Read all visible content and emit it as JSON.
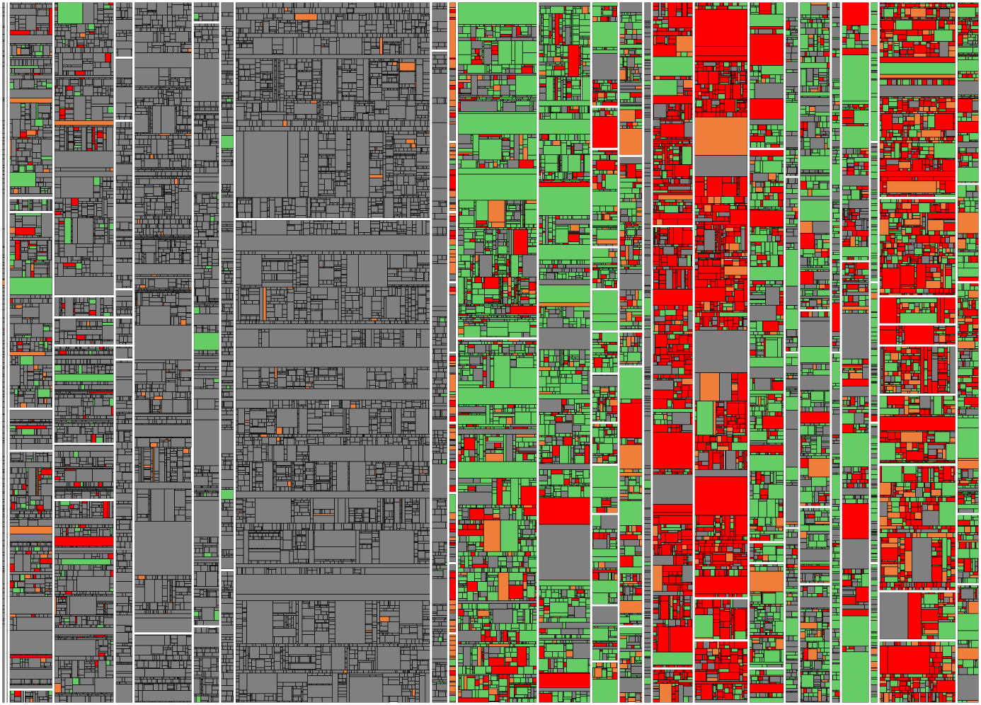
{
  "colors": {
    "covered": "#66cc66",
    "uncovered": "#ff0000",
    "partial": "#f07f3c",
    "no_data": "#808080",
    "cell_border": "#000000",
    "group_border": "#ffffff",
    "background": "#ffffff"
  },
  "chart_data": {
    "type": "treemap",
    "title": "",
    "legend": "none",
    "categories": [
      "covered",
      "partial",
      "uncovered",
      "no_data"
    ],
    "groups": [
      {
        "weight": 6,
        "mix": [
          0.0,
          0.02,
          0.03,
          0.95
        ],
        "split": [
          1.0
        ]
      },
      {
        "weight": 4,
        "mix": [
          0.0,
          0.0,
          0.0,
          1.0
        ],
        "split": [
          1.0
        ]
      },
      {
        "weight": 62,
        "mix": [
          0.08,
          0.05,
          0.04,
          0.83
        ],
        "split": [
          0.28,
          0.02,
          0.28,
          0.06,
          0.34,
          0.02
        ]
      },
      {
        "weight": 85,
        "mix": [
          0.04,
          0.01,
          0.04,
          0.91
        ],
        "split": [
          0.42,
          0.03,
          0.04,
          0.14,
          0.08,
          0.29
        ]
      },
      {
        "weight": 26,
        "mix": [
          0.0,
          0.0,
          0.0,
          1.0
        ],
        "split": [
          0.08,
          0.09,
          0.24,
          0.04,
          0.04,
          0.02,
          0.49
        ]
      },
      {
        "weight": 82,
        "mix": [
          0.0,
          0.02,
          0.0,
          0.98
        ],
        "split": [
          0.9,
          0.1
        ]
      },
      {
        "weight": 38,
        "mix": [
          0.02,
          0.0,
          0.0,
          0.98
        ],
        "split": [
          0.03,
          0.86,
          0.11
        ]
      },
      {
        "weight": 20,
        "mix": [
          0.02,
          0.0,
          0.0,
          0.98
        ],
        "split": [
          0.81,
          0.19
        ]
      },
      {
        "weight": 272,
        "mix": [
          0.0,
          0.01,
          0.0,
          0.99
        ],
        "split": [
          0.31,
          0.69
        ]
      },
      {
        "weight": 24,
        "mix": [
          0.03,
          0.0,
          0.0,
          0.97
        ],
        "split": [
          0.07,
          0.93
        ]
      },
      {
        "weight": 12,
        "mix": [
          0.05,
          0.4,
          0.25,
          0.3
        ],
        "split": [
          0.2,
          0.1,
          0.1,
          0.1,
          0.1,
          0.1,
          0.1,
          0.1,
          0.1
        ]
      },
      {
        "weight": 112,
        "mix": [
          0.55,
          0.06,
          0.12,
          0.27
        ],
        "split": [
          0.48,
          0.52
        ]
      },
      {
        "weight": 74,
        "mix": [
          0.62,
          0.05,
          0.1,
          0.23
        ],
        "split": [
          1.0
        ]
      },
      {
        "weight": 38,
        "mix": [
          0.55,
          0.08,
          0.17,
          0.2
        ],
        "split": [
          0.15,
          0.06,
          0.14,
          0.06,
          0.06,
          0.06,
          0.07,
          0.06,
          0.07,
          0.13,
          0.08,
          0.06
        ]
      },
      {
        "weight": 34,
        "mix": [
          0.35,
          0.18,
          0.12,
          0.35
        ],
        "split": [
          0.22,
          0.25,
          0.05,
          0.37,
          0.11
        ]
      },
      {
        "weight": 12,
        "mix": [
          0.1,
          0.0,
          0.0,
          0.9
        ],
        "split": [
          1.0
        ]
      },
      {
        "weight": 58,
        "mix": [
          0.15,
          0.05,
          0.55,
          0.25
        ],
        "split": [
          0.32,
          0.63,
          0.05
        ]
      },
      {
        "weight": 76,
        "mix": [
          0.14,
          0.08,
          0.62,
          0.16
        ],
        "split": [
          0.85,
          0.06,
          0.09
        ]
      },
      {
        "weight": 50,
        "mix": [
          0.55,
          0.07,
          0.18,
          0.2
        ],
        "split": [
          0.21,
          0.56,
          0.03,
          0.15,
          0.05
        ]
      },
      {
        "weight": 20,
        "mix": [
          0.3,
          0.05,
          0.05,
          0.6
        ],
        "split": [
          0.25,
          0.25,
          0.25,
          0.25
        ]
      },
      {
        "weight": 44,
        "mix": [
          0.45,
          0.08,
          0.07,
          0.4
        ],
        "split": [
          0.44,
          0.28,
          0.11,
          0.17
        ]
      },
      {
        "weight": 14,
        "mix": [
          0.55,
          0.02,
          0.03,
          0.4
        ],
        "split": [
          0.5,
          0.5
        ]
      },
      {
        "weight": 40,
        "mix": [
          0.35,
          0.06,
          0.25,
          0.34
        ],
        "split": [
          0.37,
          0.63
        ]
      },
      {
        "weight": 12,
        "mix": [
          0.55,
          0.03,
          0.02,
          0.4
        ],
        "split": [
          0.2,
          0.2,
          0.2,
          0.2,
          0.2
        ]
      },
      {
        "weight": 108,
        "mix": [
          0.25,
          0.15,
          0.45,
          0.15
        ],
        "split": [
          0.28,
          0.14,
          0.04,
          0.03,
          0.07,
          0.1,
          0.18,
          0.07,
          0.09
        ]
      },
      {
        "weight": 32,
        "mix": [
          0.5,
          0.1,
          0.2,
          0.2
        ],
        "split": [
          0.26,
          0.14,
          0.33,
          0.1,
          0.17
        ]
      }
    ]
  }
}
